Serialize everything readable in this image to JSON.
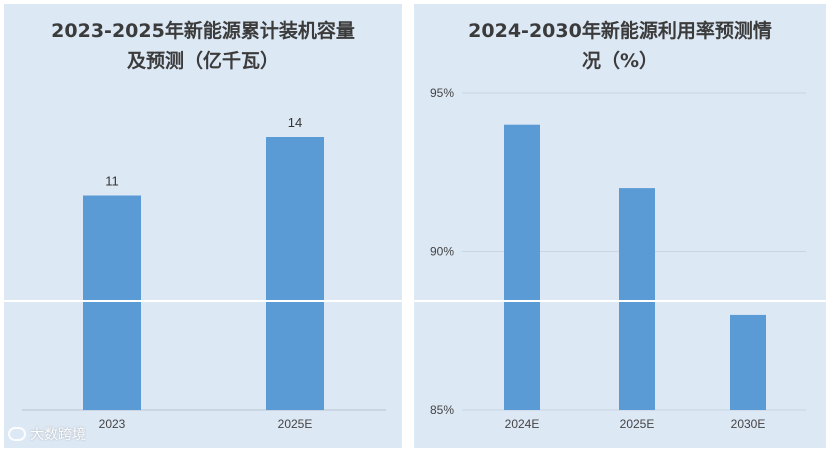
{
  "colors": {
    "bar": "#5b9bd5",
    "panel": "#dde8f5",
    "grid": "#c9d5e3",
    "axis": "#b8c4d2"
  },
  "watermark": {
    "text": "大数跨境",
    "icon": "logo-icon"
  },
  "chart_data": [
    {
      "type": "bar",
      "title": "2023-2025年新能源累计装机容量及预测（亿千瓦）",
      "categories": [
        "2023",
        "2025E"
      ],
      "values": [
        11,
        14
      ],
      "data_labels": [
        "11",
        "14"
      ],
      "ylim": [
        0,
        16
      ],
      "grid": false,
      "axis_labels_shown": false
    },
    {
      "type": "bar",
      "title": "2024-2030年新能源利用率预测情况（%）",
      "categories": [
        "2024E",
        "2025E",
        "2030E"
      ],
      "values": [
        94,
        92,
        88
      ],
      "ylim": [
        85,
        96
      ],
      "y_ticks": [
        85,
        90,
        95
      ],
      "y_tick_labels": [
        "85%",
        "90%",
        "95%"
      ],
      "grid": true
    }
  ]
}
